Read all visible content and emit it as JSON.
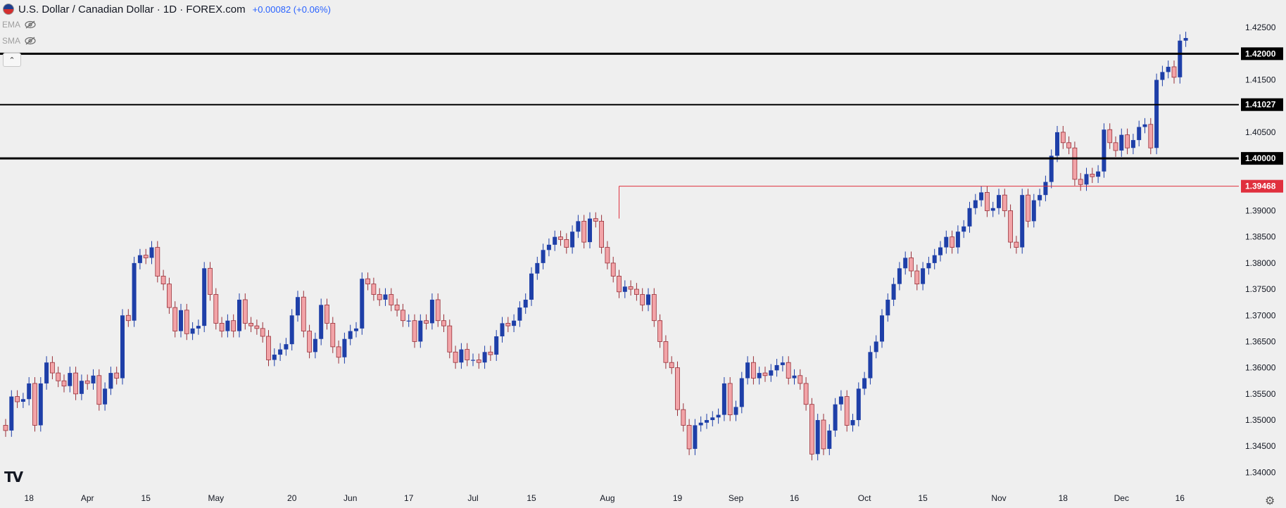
{
  "header": {
    "symbol_title": "U.S. Dollar / Canadian Dollar · 1D · FOREX.com",
    "price_change": "+0.00082 (+0.06%)"
  },
  "indicators": [
    {
      "label": "EMA"
    },
    {
      "label": "SMA"
    }
  ],
  "colors": {
    "up": "#1e3fa8",
    "down": "#f2a4a8",
    "down_border": "#9a2f38",
    "level_line": "#000000",
    "red_level": "#e0303e",
    "background": "#efefef"
  },
  "chart_data": {
    "type": "candlestick",
    "ylim": [
      1.3375,
      1.4265
    ],
    "y_ticks": [
      "1.34000",
      "1.34500",
      "1.35000",
      "1.35500",
      "1.36000",
      "1.36500",
      "1.37000",
      "1.37500",
      "1.38000",
      "1.38500",
      "1.39000",
      "1.39500",
      "1.40000",
      "1.40500",
      "1.41000",
      "1.41500",
      "1.42000",
      "1.42500"
    ],
    "x_ticks": [
      {
        "label": "18",
        "index": 4
      },
      {
        "label": "Apr",
        "index": 14
      },
      {
        "label": "15",
        "index": 24
      },
      {
        "label": "May",
        "index": 36
      },
      {
        "label": "20",
        "index": 49
      },
      {
        "label": "Jun",
        "index": 59
      },
      {
        "label": "17",
        "index": 69
      },
      {
        "label": "Jul",
        "index": 80
      },
      {
        "label": "15",
        "index": 90
      },
      {
        "label": "Aug",
        "index": 103
      },
      {
        "label": "19",
        "index": 115
      },
      {
        "label": "Sep",
        "index": 125
      },
      {
        "label": "16",
        "index": 135
      },
      {
        "label": "Oct",
        "index": 147
      },
      {
        "label": "15",
        "index": 157
      },
      {
        "label": "Nov",
        "index": 170
      },
      {
        "label": "18",
        "index": 181
      },
      {
        "label": "Dec",
        "index": 191
      },
      {
        "label": "16",
        "index": 201
      }
    ],
    "levels": [
      {
        "value": 1.42,
        "label": "1.42000",
        "style": "thick"
      },
      {
        "value": 1.41027,
        "label": "1.41027",
        "style": "thin"
      },
      {
        "value": 1.4,
        "label": "1.40000",
        "style": "thick"
      }
    ],
    "red_level": {
      "value": 1.39468,
      "label": "1.39468",
      "start_index": 105
    },
    "candles": [
      [
        1.349,
        1.348
      ],
      [
        1.348,
        1.3545
      ],
      [
        1.3545,
        1.3535
      ],
      [
        1.3535,
        1.354
      ],
      [
        1.354,
        1.357
      ],
      [
        1.357,
        1.349
      ],
      [
        1.349,
        1.357
      ],
      [
        1.357,
        1.361
      ],
      [
        1.361,
        1.359
      ],
      [
        1.359,
        1.3575
      ],
      [
        1.3575,
        1.3565
      ],
      [
        1.3565,
        1.359
      ],
      [
        1.359,
        1.355
      ],
      [
        1.355,
        1.3575
      ],
      [
        1.3575,
        1.357
      ],
      [
        1.357,
        1.3585
      ],
      [
        1.3585,
        1.353
      ],
      [
        1.353,
        1.356
      ],
      [
        1.356,
        1.359
      ],
      [
        1.359,
        1.358
      ],
      [
        1.358,
        1.37
      ],
      [
        1.37,
        1.369
      ],
      [
        1.369,
        1.38
      ],
      [
        1.38,
        1.3815
      ],
      [
        1.3815,
        1.381
      ],
      [
        1.381,
        1.383
      ],
      [
        1.383,
        1.3775
      ],
      [
        1.3775,
        1.376
      ],
      [
        1.376,
        1.3715
      ],
      [
        1.3715,
        1.367
      ],
      [
        1.367,
        1.371
      ],
      [
        1.371,
        1.3665
      ],
      [
        1.3665,
        1.3675
      ],
      [
        1.3675,
        1.368
      ],
      [
        1.368,
        1.379
      ],
      [
        1.379,
        1.374
      ],
      [
        1.374,
        1.3685
      ],
      [
        1.3685,
        1.367
      ],
      [
        1.367,
        1.369
      ],
      [
        1.369,
        1.367
      ],
      [
        1.367,
        1.373
      ],
      [
        1.373,
        1.3685
      ],
      [
        1.3685,
        1.368
      ],
      [
        1.368,
        1.3675
      ],
      [
        1.3675,
        1.366
      ],
      [
        1.366,
        1.3615
      ],
      [
        1.3615,
        1.3625
      ],
      [
        1.3625,
        1.3635
      ],
      [
        1.3635,
        1.3645
      ],
      [
        1.3645,
        1.37
      ],
      [
        1.37,
        1.3735
      ],
      [
        1.3735,
        1.367
      ],
      [
        1.367,
        1.363
      ],
      [
        1.363,
        1.3655
      ],
      [
        1.3655,
        1.372
      ],
      [
        1.372,
        1.3685
      ],
      [
        1.3685,
        1.364
      ],
      [
        1.364,
        1.362
      ],
      [
        1.362,
        1.3655
      ],
      [
        1.3655,
        1.367
      ],
      [
        1.367,
        1.3675
      ],
      [
        1.3675,
        1.377
      ],
      [
        1.377,
        1.376
      ],
      [
        1.376,
        1.374
      ],
      [
        1.374,
        1.373
      ],
      [
        1.373,
        1.374
      ],
      [
        1.374,
        1.372
      ],
      [
        1.372,
        1.371
      ],
      [
        1.371,
        1.369
      ],
      [
        1.369,
        1.369
      ],
      [
        1.369,
        1.365
      ],
      [
        1.365,
        1.369
      ],
      [
        1.369,
        1.3685
      ],
      [
        1.3685,
        1.373
      ],
      [
        1.373,
        1.369
      ],
      [
        1.369,
        1.368
      ],
      [
        1.368,
        1.363
      ],
      [
        1.363,
        1.361
      ],
      [
        1.361,
        1.3635
      ],
      [
        1.3635,
        1.3615
      ],
      [
        1.3615,
        1.3615
      ],
      [
        1.3615,
        1.361
      ],
      [
        1.361,
        1.363
      ],
      [
        1.363,
        1.3625
      ],
      [
        1.3625,
        1.366
      ],
      [
        1.366,
        1.3685
      ],
      [
        1.3685,
        1.368
      ],
      [
        1.368,
        1.369
      ],
      [
        1.369,
        1.3715
      ],
      [
        1.3715,
        1.373
      ],
      [
        1.373,
        1.378
      ],
      [
        1.378,
        1.38
      ],
      [
        1.38,
        1.3825
      ],
      [
        1.3825,
        1.3835
      ],
      [
        1.3835,
        1.385
      ],
      [
        1.385,
        1.3845
      ],
      [
        1.3845,
        1.383
      ],
      [
        1.383,
        1.386
      ],
      [
        1.386,
        1.388
      ],
      [
        1.388,
        1.384
      ],
      [
        1.384,
        1.3885
      ],
      [
        1.3885,
        1.388
      ],
      [
        1.388,
        1.383
      ],
      [
        1.383,
        1.38
      ],
      [
        1.38,
        1.3775
      ],
      [
        1.3775,
        1.3745
      ],
      [
        1.3745,
        1.3755
      ],
      [
        1.3755,
        1.375
      ],
      [
        1.375,
        1.374
      ],
      [
        1.374,
        1.372
      ],
      [
        1.372,
        1.374
      ],
      [
        1.374,
        1.369
      ],
      [
        1.369,
        1.365
      ],
      [
        1.365,
        1.361
      ],
      [
        1.361,
        1.36
      ],
      [
        1.36,
        1.352
      ],
      [
        1.352,
        1.349
      ],
      [
        1.349,
        1.3445
      ],
      [
        1.3445,
        1.349
      ],
      [
        1.349,
        1.3495
      ],
      [
        1.3495,
        1.35
      ],
      [
        1.35,
        1.3505
      ],
      [
        1.3505,
        1.351
      ],
      [
        1.351,
        1.357
      ],
      [
        1.357,
        1.351
      ],
      [
        1.351,
        1.3525
      ],
      [
        1.3525,
        1.358
      ],
      [
        1.358,
        1.361
      ],
      [
        1.361,
        1.358
      ],
      [
        1.358,
        1.359
      ],
      [
        1.359,
        1.3585
      ],
      [
        1.3585,
        1.3595
      ],
      [
        1.3595,
        1.3605
      ],
      [
        1.3605,
        1.361
      ],
      [
        1.361,
        1.358
      ],
      [
        1.358,
        1.3585
      ],
      [
        1.3585,
        1.357
      ],
      [
        1.357,
        1.353
      ],
      [
        1.353,
        1.3435
      ],
      [
        1.3435,
        1.35
      ],
      [
        1.35,
        1.3445
      ],
      [
        1.3445,
        1.348
      ],
      [
        1.348,
        1.353
      ],
      [
        1.353,
        1.3545
      ],
      [
        1.3545,
        1.349
      ],
      [
        1.349,
        1.35
      ],
      [
        1.35,
        1.356
      ],
      [
        1.356,
        1.358
      ],
      [
        1.358,
        1.363
      ],
      [
        1.363,
        1.365
      ],
      [
        1.365,
        1.37
      ],
      [
        1.37,
        1.373
      ],
      [
        1.373,
        1.376
      ],
      [
        1.376,
        1.379
      ],
      [
        1.379,
        1.381
      ],
      [
        1.381,
        1.3785
      ],
      [
        1.3785,
        1.376
      ],
      [
        1.376,
        1.379
      ],
      [
        1.379,
        1.38
      ],
      [
        1.38,
        1.3815
      ],
      [
        1.3815,
        1.383
      ],
      [
        1.383,
        1.385
      ],
      [
        1.385,
        1.383
      ],
      [
        1.383,
        1.386
      ],
      [
        1.386,
        1.387
      ],
      [
        1.387,
        1.3905
      ],
      [
        1.3905,
        1.392
      ],
      [
        1.392,
        1.3935
      ],
      [
        1.3935,
        1.39
      ],
      [
        1.39,
        1.3905
      ],
      [
        1.3905,
        1.393
      ],
      [
        1.393,
        1.39
      ],
      [
        1.39,
        1.384
      ],
      [
        1.384,
        1.383
      ],
      [
        1.383,
        1.393
      ],
      [
        1.393,
        1.388
      ],
      [
        1.388,
        1.392
      ],
      [
        1.392,
        1.393
      ],
      [
        1.393,
        1.3955
      ],
      [
        1.3955,
        1.4005
      ],
      [
        1.4005,
        1.405
      ],
      [
        1.405,
        1.403
      ],
      [
        1.403,
        1.402
      ],
      [
        1.402,
        1.396
      ],
      [
        1.396,
        1.395
      ],
      [
        1.395,
        1.397
      ],
      [
        1.397,
        1.3965
      ],
      [
        1.3965,
        1.3975
      ],
      [
        1.3975,
        1.4055
      ],
      [
        1.4055,
        1.403
      ],
      [
        1.403,
        1.4015
      ],
      [
        1.4015,
        1.4045
      ],
      [
        1.4045,
        1.402
      ],
      [
        1.402,
        1.4035
      ],
      [
        1.4035,
        1.406
      ],
      [
        1.406,
        1.4065
      ],
      [
        1.4065,
        1.402
      ],
      [
        1.402,
        1.415
      ],
      [
        1.415,
        1.4165
      ],
      [
        1.4165,
        1.4175
      ],
      [
        1.4175,
        1.4155
      ],
      [
        1.4155,
        1.4225
      ],
      [
        1.4225,
        1.423
      ]
    ]
  }
}
